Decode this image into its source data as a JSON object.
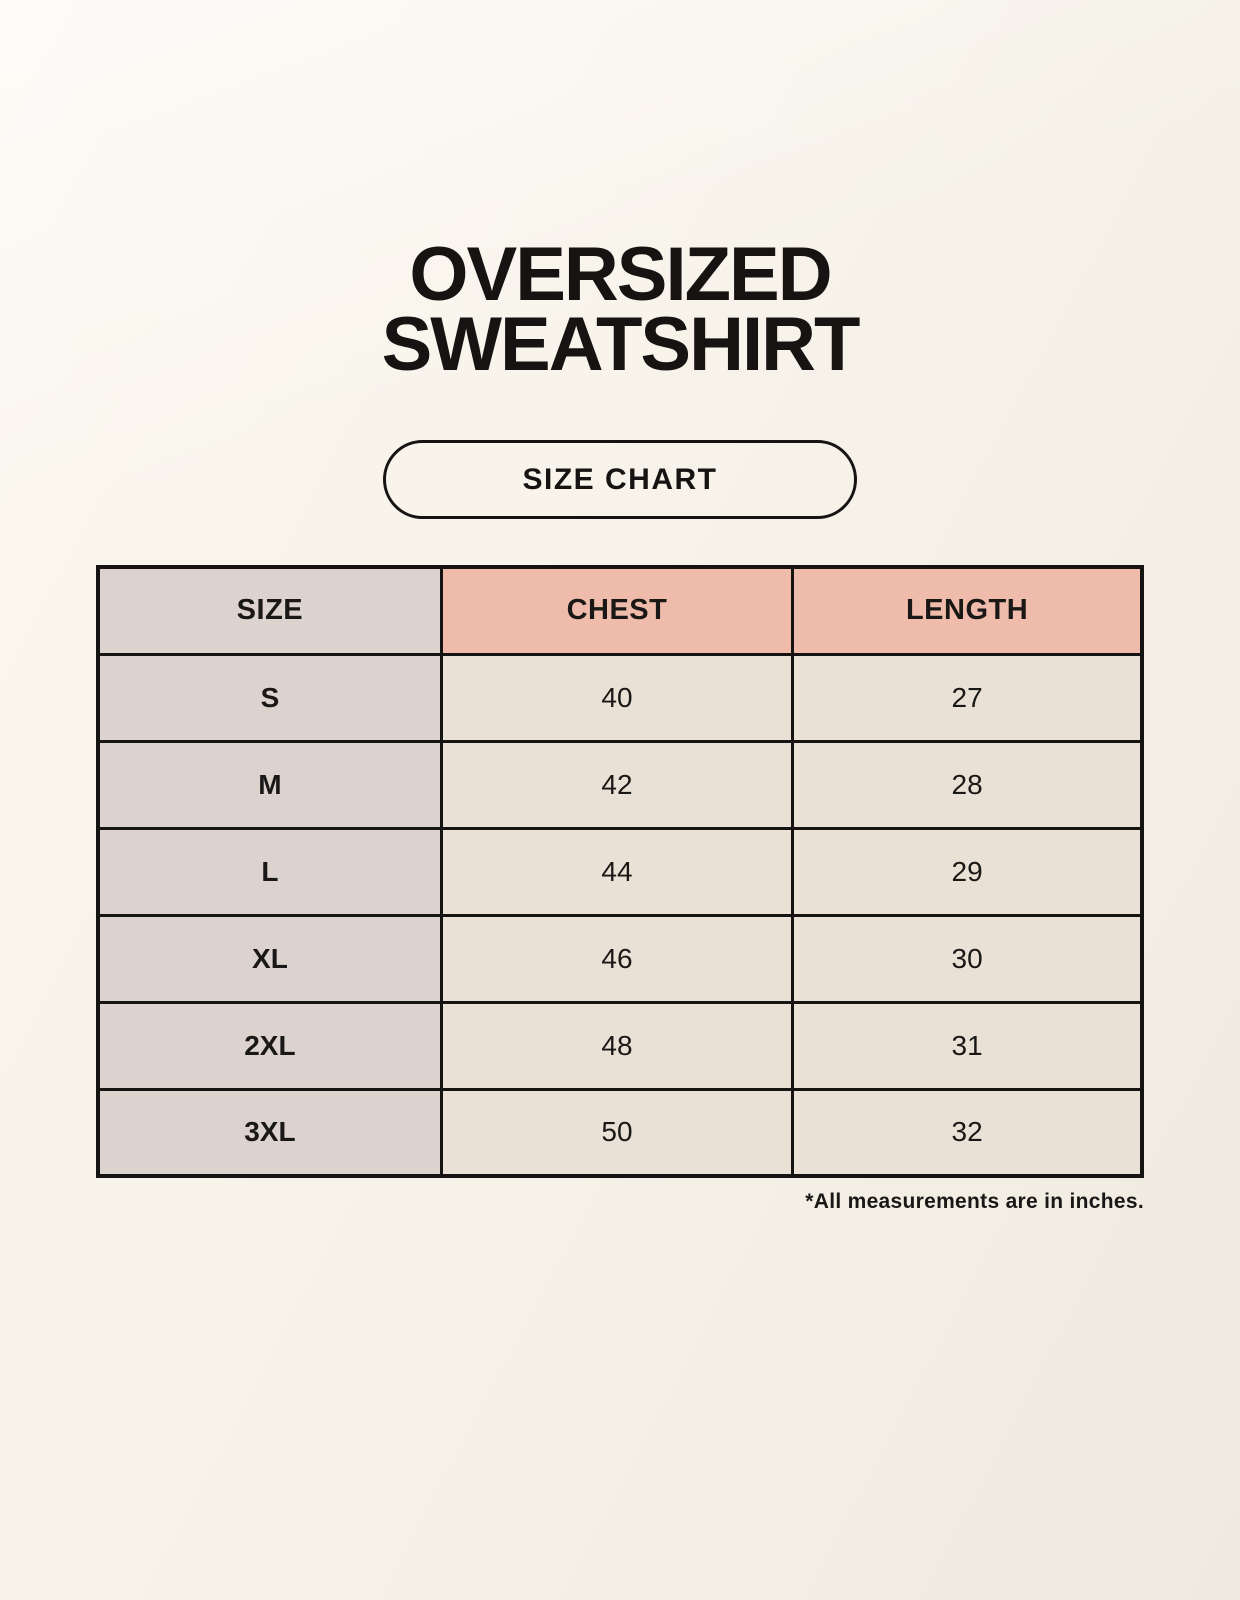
{
  "header": {
    "title_line1": "OVERSIZED",
    "title_line2": "SWEATSHIRT"
  },
  "size_chart_button": {
    "label": "SIZE CHART"
  },
  "chart_data": {
    "type": "table",
    "title": "OVERSIZED SWEATSHIRT",
    "columns": [
      "SIZE",
      "CHEST",
      "LENGTH"
    ],
    "rows": [
      {
        "size": "S",
        "chest": 40,
        "length": 27
      },
      {
        "size": "M",
        "chest": 42,
        "length": 28
      },
      {
        "size": "L",
        "chest": 44,
        "length": 29
      },
      {
        "size": "XL",
        "chest": 46,
        "length": 30
      },
      {
        "size": "2XL",
        "chest": 48,
        "length": 31
      },
      {
        "size": "3XL",
        "chest": 50,
        "length": 32
      }
    ],
    "units_note": "*All measurements are in inches."
  },
  "colors": {
    "background": "#f7f3ea",
    "size_column_bg": "#dcd3ce",
    "header_accent_bg": "#efbbaa",
    "value_cell_bg": "#e9e1d5",
    "border_and_text": "#161413"
  }
}
